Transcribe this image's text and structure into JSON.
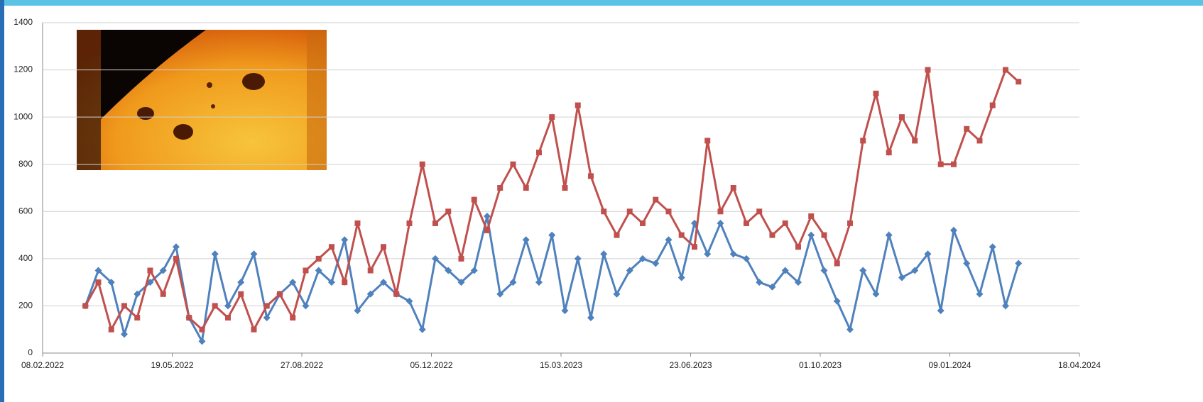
{
  "chart_data": {
    "type": "line",
    "x": [
      "13.03.2022",
      "23.03.2022",
      "02.04.2022",
      "12.04.2022",
      "22.04.2022",
      "02.05.2022",
      "12.05.2022",
      "22.05.2022",
      "01.06.2022",
      "11.06.2022",
      "21.06.2022",
      "01.07.2022",
      "11.07.2022",
      "21.07.2022",
      "31.07.2022",
      "10.08.2022",
      "20.08.2022",
      "30.08.2022",
      "09.09.2022",
      "19.09.2022",
      "29.09.2022",
      "09.10.2022",
      "19.10.2022",
      "29.10.2022",
      "08.11.2022",
      "18.11.2022",
      "28.11.2022",
      "08.12.2022",
      "18.12.2022",
      "28.12.2022",
      "07.01.2023",
      "17.01.2023",
      "27.01.2023",
      "06.02.2023",
      "16.02.2023",
      "26.02.2023",
      "08.03.2023",
      "18.03.2023",
      "28.03.2023",
      "07.04.2023",
      "17.04.2023",
      "27.04.2023",
      "07.05.2023",
      "17.05.2023",
      "27.05.2023",
      "06.06.2023",
      "16.06.2023",
      "26.06.2023",
      "06.07.2023",
      "16.07.2023",
      "26.07.2023",
      "05.08.2023",
      "15.08.2023",
      "25.08.2023",
      "04.09.2023",
      "14.09.2023",
      "24.09.2023",
      "04.10.2023",
      "14.10.2023",
      "24.10.2023",
      "03.11.2023",
      "13.11.2023",
      "23.11.2023",
      "03.12.2023",
      "13.12.2023",
      "23.12.2023",
      "02.01.2024",
      "12.01.2024",
      "22.01.2024",
      "01.02.2024",
      "11.02.2024",
      "21.02.2024",
      "02.03.2024"
    ],
    "series": [
      {
        "color": "#4f81bd",
        "marker": "diamond",
        "values": [
          200,
          350,
          300,
          80,
          250,
          300,
          350,
          450,
          150,
          50,
          420,
          200,
          300,
          420,
          150,
          250,
          300,
          200,
          350,
          300,
          480,
          180,
          250,
          300,
          250,
          220,
          100,
          400,
          350,
          300,
          350,
          580,
          250,
          300,
          480,
          300,
          500,
          180,
          400,
          150,
          420,
          250,
          350,
          400,
          380,
          480,
          320,
          550,
          420,
          550,
          420,
          400,
          300,
          280,
          350,
          300,
          500,
          350,
          220,
          100,
          350,
          250,
          500,
          320,
          350,
          420,
          180,
          520,
          380,
          250,
          450,
          200,
          380
        ]
      },
      {
        "color": "#c0504d",
        "marker": "square",
        "values": [
          200,
          300,
          100,
          200,
          150,
          350,
          250,
          400,
          150,
          100,
          200,
          150,
          250,
          100,
          200,
          250,
          150,
          350,
          400,
          450,
          300,
          550,
          350,
          450,
          250,
          550,
          800,
          550,
          600,
          400,
          650,
          520,
          700,
          800,
          700,
          850,
          1000,
          700,
          1050,
          750,
          600,
          500,
          600,
          550,
          650,
          600,
          500,
          450,
          900,
          600,
          700,
          550,
          600,
          500,
          550,
          450,
          580,
          500,
          380,
          550,
          900,
          1100,
          850,
          1000,
          900,
          1200,
          800,
          800,
          950,
          900,
          1050,
          1200,
          1150
        ]
      }
    ],
    "xlim": [
      "08.02.2022",
      "18.04.2024"
    ],
    "xticks": [
      "08.02.2022",
      "19.05.2022",
      "27.08.2022",
      "05.12.2022",
      "15.03.2023",
      "23.06.2023",
      "01.10.2023",
      "09.01.2024",
      "18.04.2024"
    ],
    "ylim": [
      0,
      1400
    ],
    "yticks": [
      0,
      200,
      400,
      600,
      800,
      1000,
      1200,
      1400
    ],
    "grid": true
  }
}
